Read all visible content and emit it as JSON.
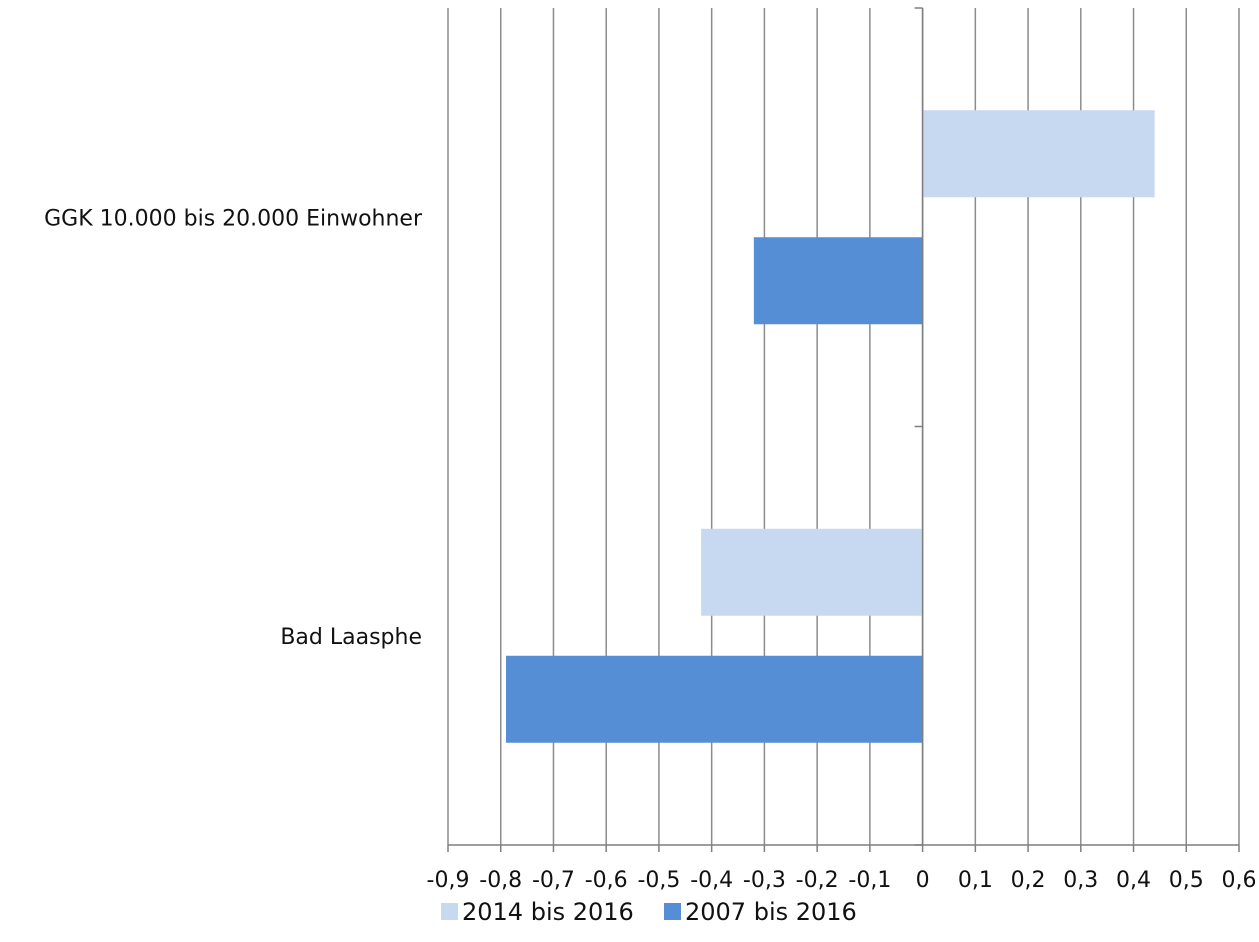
{
  "chart_data": {
    "type": "bar",
    "orientation": "horizontal",
    "categories": [
      "GGK 10.000 bis 20.000 Einwohner",
      "Bad Laasphe"
    ],
    "series": [
      {
        "name": "2014 bis 2016",
        "color": "#c6d9f1",
        "values": [
          0.44,
          -0.42
        ]
      },
      {
        "name": "2007 bis 2016",
        "color": "#558ed5",
        "values": [
          -0.32,
          -0.79
        ]
      }
    ],
    "xlim": [
      -0.9,
      0.6
    ],
    "x_ticks": [
      -0.9,
      -0.8,
      -0.7,
      -0.6,
      -0.5,
      -0.4,
      -0.3,
      -0.2,
      -0.1,
      0,
      0.1,
      0.2,
      0.3,
      0.4,
      0.5,
      0.6
    ],
    "x_tick_labels": [
      "-0,9",
      "-0,8",
      "-0,7",
      "-0,6",
      "-0,5",
      "-0,4",
      "-0,3",
      "-0,2",
      "-0,1",
      "0",
      "0,1",
      "0,2",
      "0,3",
      "0,4",
      "0,5",
      "0,6"
    ],
    "grid": "vertical",
    "legend_position": "bottom",
    "gridline_color": "#8c8c8c"
  }
}
